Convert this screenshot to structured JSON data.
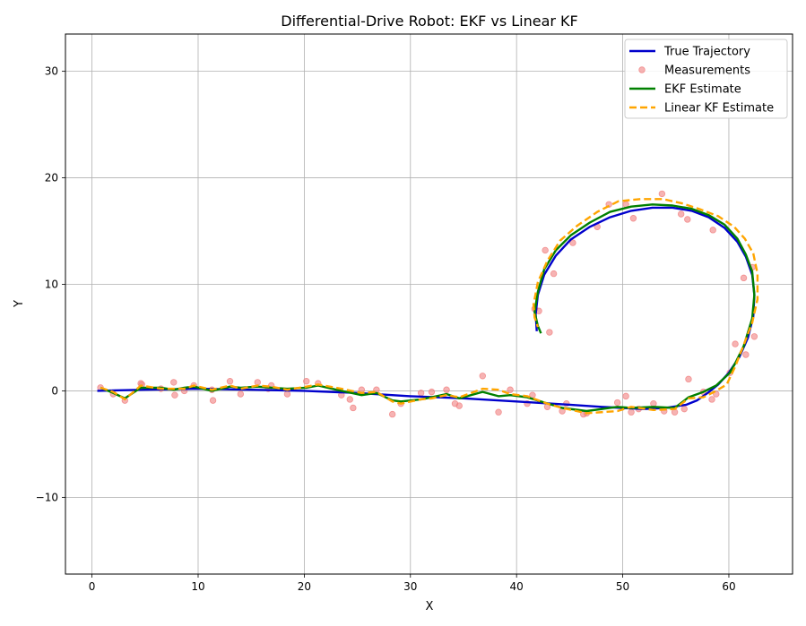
{
  "chart_data": {
    "type": "line",
    "title": "Differential-Drive Robot: EKF vs Linear KF",
    "xlabel": "X",
    "ylabel": "Y",
    "xlim": [
      -2.5,
      66
    ],
    "ylim": [
      -17.2,
      33.5
    ],
    "xticks": [
      0,
      10,
      20,
      30,
      40,
      50,
      60
    ],
    "yticks": [
      -10,
      0,
      10,
      20,
      30
    ],
    "xtick_labels": [
      "0",
      "10",
      "20",
      "30",
      "40",
      "50",
      "60"
    ],
    "ytick_labels": [
      "−10",
      "0",
      "10",
      "20",
      "30"
    ],
    "grid": true,
    "legend_position": "top-right",
    "series": [
      {
        "name": "True Trajectory",
        "style": "line",
        "color": "#0000cc",
        "x": [
          0.5,
          5,
          10,
          15,
          20,
          25,
          30,
          35,
          40,
          45,
          48,
          50,
          52,
          54,
          56,
          57,
          58,
          59,
          60,
          61,
          61.8,
          62.3,
          62.4,
          62.2,
          61.6,
          60.8,
          59.6,
          58.1,
          56.5,
          54.7,
          52.8,
          50.8,
          48.8,
          46.9,
          45.1,
          43.7,
          42.6,
          42.0,
          41.8,
          41.9
        ],
        "y": [
          0.0,
          0.1,
          0.2,
          0.1,
          0.0,
          -0.2,
          -0.5,
          -0.7,
          -1.0,
          -1.3,
          -1.5,
          -1.6,
          -1.7,
          -1.6,
          -1.3,
          -0.9,
          -0.2,
          0.6,
          1.7,
          3.2,
          5.0,
          7.0,
          9.0,
          10.9,
          12.6,
          14.0,
          15.3,
          16.3,
          16.9,
          17.2,
          17.2,
          16.9,
          16.3,
          15.4,
          14.2,
          12.7,
          10.9,
          9.0,
          7.2,
          5.6
        ]
      },
      {
        "name": "Measurements",
        "style": "scatter",
        "color": "#f08080",
        "x": [
          0.8,
          2.0,
          3.1,
          4.6,
          4.7,
          6.5,
          7.7,
          7.8,
          8.7,
          9.6,
          11.3,
          11.4,
          13.0,
          14.0,
          15.6,
          16.6,
          16.9,
          18.4,
          20.2,
          21.3,
          23.5,
          24.3,
          24.6,
          25.4,
          26.8,
          28.3,
          29.1,
          31.0,
          32.0,
          33.4,
          34.2,
          34.6,
          36.8,
          38.3,
          39.4,
          41.0,
          41.5,
          41.7,
          42.1,
          42.7,
          42.9,
          43.1,
          43.5,
          44.3,
          44.7,
          45.3,
          46.3,
          46.6,
          47.6,
          48.7,
          49.5,
          50.3,
          50.3,
          50.8,
          51.0,
          51.5,
          52.9,
          53.7,
          53.9,
          54.9,
          55.5,
          55.8,
          56.1,
          56.2,
          57.6,
          58.4,
          58.5,
          58.8,
          60.1,
          60.6,
          61.4,
          61.6,
          62.2,
          62.4
        ],
        "y": [
          0.3,
          -0.3,
          -0.9,
          0.7,
          0.6,
          0.2,
          0.8,
          -0.4,
          0.0,
          0.5,
          0.1,
          -0.9,
          0.9,
          -0.3,
          0.8,
          0.2,
          0.5,
          -0.3,
          0.9,
          0.7,
          -0.4,
          -0.8,
          -1.6,
          0.1,
          0.1,
          -2.2,
          -1.2,
          -0.2,
          -0.1,
          0.1,
          -1.2,
          -1.4,
          1.4,
          -2.0,
          0.1,
          -1.2,
          -0.4,
          7.7,
          7.5,
          13.2,
          -1.5,
          5.5,
          11.0,
          -1.9,
          -1.2,
          13.9,
          -2.2,
          -2.1,
          15.4,
          17.5,
          -1.1,
          17.5,
          -0.5,
          -2.0,
          16.2,
          -1.7,
          -1.2,
          18.5,
          -1.9,
          -2.0,
          16.6,
          -1.7,
          16.1,
          1.1,
          -0.1,
          -0.8,
          15.1,
          -0.3,
          1.7,
          4.4,
          10.6,
          3.4,
          11.6,
          5.1
        ]
      },
      {
        "name": "EKF Estimate",
        "style": "line",
        "color": "#008000",
        "x": [
          0.8,
          2.0,
          3.1,
          4.6,
          6.5,
          7.7,
          8.7,
          9.6,
          11.3,
          13.0,
          14.0,
          15.6,
          16.9,
          18.4,
          20.2,
          21.3,
          23.5,
          25.4,
          26.8,
          28.3,
          29.1,
          31.0,
          32.0,
          33.4,
          34.6,
          36.8,
          38.3,
          39.4,
          41.0,
          44.3,
          46.6,
          49.5,
          50.8,
          52.9,
          54.9,
          56.2,
          57.6,
          58.8,
          60.1,
          60.6,
          61.4,
          62.2,
          62.4,
          62.2,
          61.6,
          60.8,
          59.6,
          58.1,
          56.5,
          54.7,
          52.8,
          50.8,
          48.8,
          46.9,
          45.1,
          43.7,
          42.6,
          42.0,
          41.7,
          42.0,
          42.3
        ],
        "y": [
          0.3,
          -0.2,
          -0.7,
          0.3,
          0.3,
          0.1,
          0.3,
          0.4,
          0.0,
          0.4,
          0.3,
          0.4,
          0.3,
          0.2,
          0.3,
          0.5,
          0.0,
          -0.4,
          -0.2,
          -0.9,
          -1.0,
          -0.8,
          -0.6,
          -0.3,
          -0.7,
          -0.1,
          -0.5,
          -0.4,
          -0.6,
          -1.6,
          -1.9,
          -1.5,
          -1.6,
          -1.5,
          -1.6,
          -0.6,
          -0.1,
          0.5,
          1.7,
          2.6,
          4.2,
          6.8,
          9.0,
          11.2,
          12.8,
          14.3,
          15.6,
          16.5,
          17.1,
          17.4,
          17.5,
          17.3,
          16.8,
          15.8,
          14.6,
          13.2,
          11.4,
          9.3,
          7.4,
          6.1,
          5.4
        ]
      },
      {
        "name": "Linear KF Estimate",
        "style": "dashed",
        "color": "#ffa500",
        "x": [
          0.8,
          2.0,
          3.1,
          4.6,
          6.5,
          7.7,
          8.7,
          9.6,
          11.3,
          13.0,
          14.0,
          15.6,
          16.9,
          18.4,
          20.2,
          21.3,
          23.5,
          25.4,
          26.8,
          28.3,
          29.1,
          31.0,
          32.0,
          33.4,
          34.6,
          36.8,
          38.3,
          39.4,
          41.0,
          42.9,
          44.3,
          46.6,
          49.5,
          50.8,
          52.9,
          54.9,
          56.2,
          57.6,
          58.8,
          59.8,
          60.6,
          61.4,
          62.2,
          62.7,
          62.7,
          62.3,
          61.5,
          60.5,
          59.0,
          57.4,
          55.6,
          53.8,
          51.7,
          49.6,
          47.6,
          45.7,
          44.1,
          42.9,
          42.0,
          41.6,
          41.7,
          42.0
        ],
        "y": [
          0.3,
          -0.1,
          -0.8,
          0.5,
          0.2,
          0.2,
          0.2,
          0.5,
          0.1,
          0.5,
          0.2,
          0.5,
          0.4,
          0.1,
          0.4,
          0.6,
          0.2,
          -0.2,
          -0.1,
          -1.0,
          -1.2,
          -0.8,
          -0.7,
          -0.4,
          -0.6,
          0.2,
          0.1,
          -0.3,
          -0.5,
          -1.2,
          -1.6,
          -2.1,
          -1.9,
          -1.5,
          -1.8,
          -1.7,
          -0.7,
          -0.6,
          0.0,
          0.6,
          2.3,
          4.3,
          6.4,
          8.6,
          11.0,
          12.9,
          14.3,
          15.4,
          16.4,
          17.0,
          17.6,
          18.0,
          18.0,
          17.8,
          16.8,
          15.5,
          14.1,
          12.2,
          10.2,
          8.1,
          6.9,
          6.0
        ]
      }
    ]
  }
}
